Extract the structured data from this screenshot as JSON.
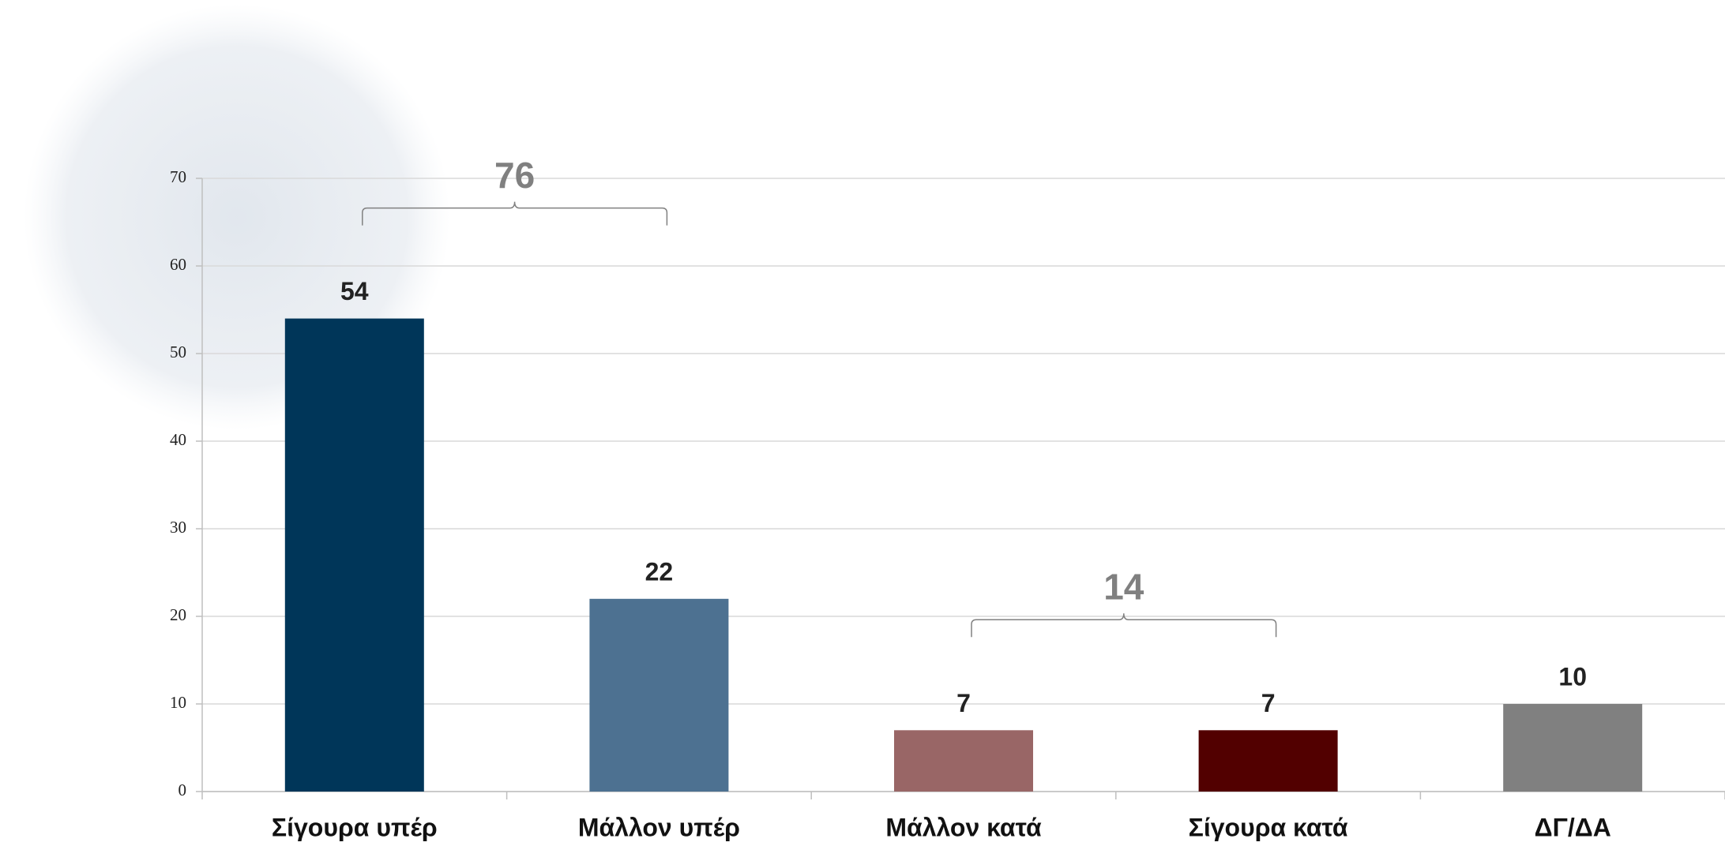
{
  "chart_data": {
    "type": "bar",
    "categories": [
      "Σίγουρα υπέρ",
      "Μάλλον υπέρ",
      "Μάλλον κατά",
      "Σίγουρα κατά",
      "ΔΓ/ΔΑ"
    ],
    "values": [
      54,
      22,
      7,
      7,
      10
    ],
    "colors": [
      "#003659",
      "#4d7191",
      "#996666",
      "#520000",
      "#808080"
    ],
    "ylim": [
      0,
      70
    ],
    "yticks": [
      0,
      10,
      20,
      30,
      40,
      50,
      60,
      70
    ],
    "grid": true,
    "annotations": [
      "76",
      "14"
    ]
  }
}
